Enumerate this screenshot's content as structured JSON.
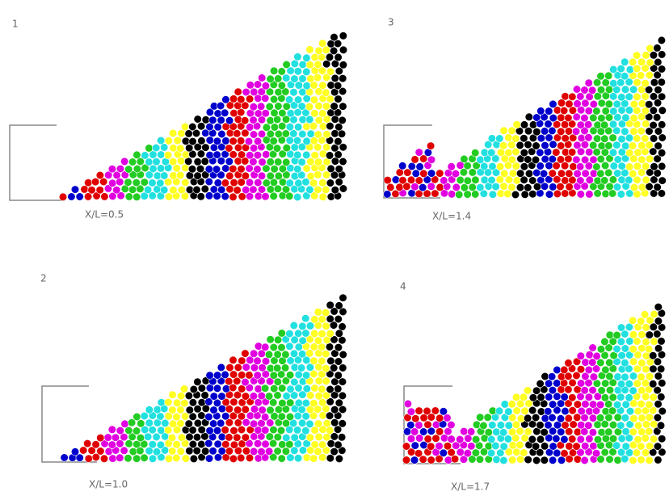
{
  "panels": [
    {
      "label": "1",
      "caption": "X/L=0.5"
    },
    {
      "label": "3",
      "caption": "X/L=1.4"
    },
    {
      "label": "2",
      "caption": "X/L=1.0"
    },
    {
      "label": "4",
      "caption": "X/L=1.7"
    }
  ]
}
